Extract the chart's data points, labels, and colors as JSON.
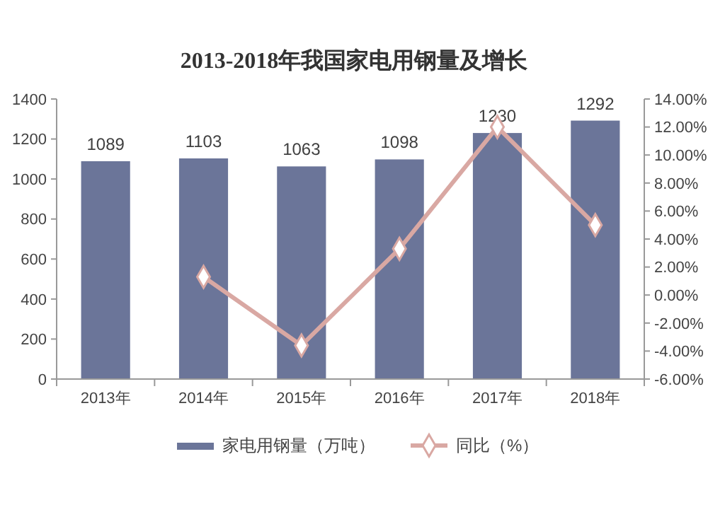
{
  "chart_data": {
    "type": "bar",
    "title": "2013-2018年我国家电用钢量及增长",
    "categories": [
      "2013年",
      "2014年",
      "2015年",
      "2016年",
      "2017年",
      "2018年"
    ],
    "series": [
      {
        "name": "家电用钢量（万吨）",
        "color": "#6b7599",
        "values": [
          1089,
          1103,
          1063,
          1098,
          1230,
          1292
        ],
        "value_labels": [
          "1089",
          "1103",
          "1063",
          "1098",
          "1230",
          "1292"
        ]
      },
      {
        "name": "同比（%）",
        "type": "line",
        "axis": "y2",
        "color": "#d9a8a3",
        "marker": "diamond",
        "values": [
          null,
          1.3,
          -3.6,
          3.3,
          12.0,
          5.0
        ]
      }
    ],
    "ylim": [
      0,
      1400
    ],
    "yticks": [
      0,
      200,
      400,
      600,
      800,
      1000,
      1200,
      1400
    ],
    "y2lim": [
      -6,
      14
    ],
    "y2ticks": [
      {
        "value": -6,
        "label": "-6.00%"
      },
      {
        "value": -4,
        "label": "-4.00%"
      },
      {
        "value": -2,
        "label": "-2.00%"
      },
      {
        "value": 0,
        "label": "0.00%"
      },
      {
        "value": 2,
        "label": "2.00%"
      },
      {
        "value": 4,
        "label": "4.00%"
      },
      {
        "value": 6,
        "label": "6.00%"
      },
      {
        "value": 8,
        "label": "8.00%"
      },
      {
        "value": 10,
        "label": "10.00%"
      },
      {
        "value": 12,
        "label": "12.00%"
      },
      {
        "value": 14,
        "label": "14.00%"
      }
    ],
    "legend": "bottom"
  }
}
